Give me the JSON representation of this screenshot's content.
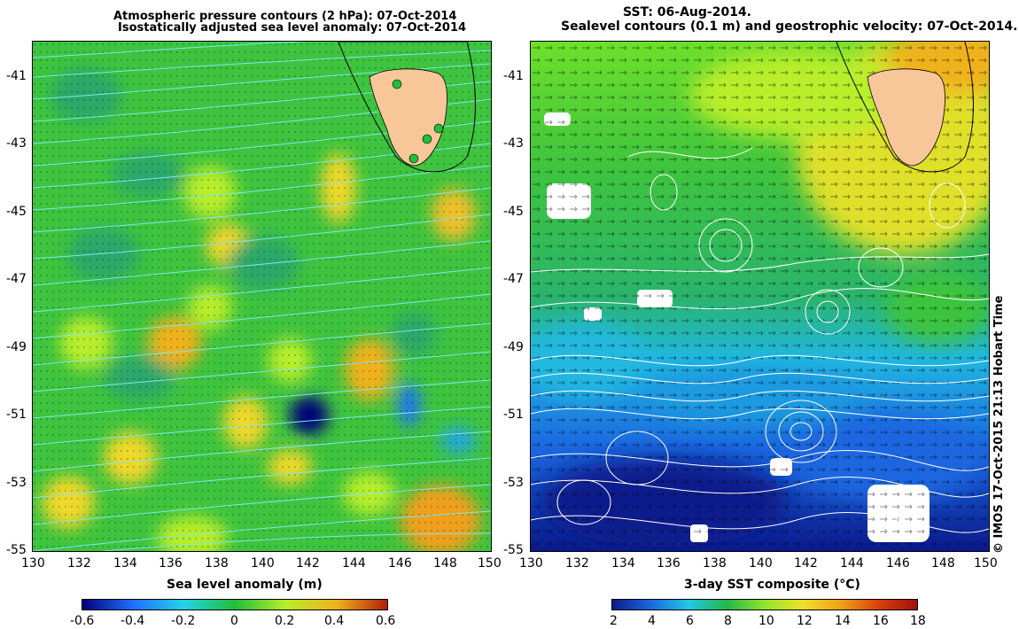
{
  "left_panel": {
    "title_line1": "Atmospheric pressure contours (2 hPa): 07-Oct-2014",
    "title_line2": "Isostatically adjusted sea level anomaly: 07-Oct-2014",
    "y_ticks": [
      "-41",
      "-43",
      "-45",
      "-47",
      "-49",
      "-51",
      "-53",
      "-55"
    ],
    "x_ticks": [
      "130",
      "132",
      "134",
      "136",
      "138",
      "140",
      "142",
      "144",
      "146",
      "148",
      "150"
    ],
    "colorbar_label": "Sea level anomaly (m)",
    "colorbar_ticks": [
      "-0.6",
      "-0.4",
      "-0.2",
      "0",
      "0.2",
      "0.4",
      "0.6"
    ],
    "colorbar_colors": [
      "#00007a",
      "#1f6fff",
      "#23d4e6",
      "#1fbf3a",
      "#b8ee2a",
      "#f0b21c",
      "#b01f06"
    ]
  },
  "right_panel": {
    "title_line1": "SST: 06-Aug-2014.",
    "title_line2": "Sealevel contours (0.1 m) and geostrophic velocity: 07-Oct-2014.",
    "y_ticks": [
      "-41",
      "-43",
      "-45",
      "-47",
      "-49",
      "-51",
      "-53",
      "-55"
    ],
    "x_ticks": [
      "130",
      "132",
      "134",
      "136",
      "138",
      "140",
      "142",
      "144",
      "146",
      "148",
      "150"
    ],
    "colorbar_label": "3-day SST composite (°C)",
    "colorbar_ticks": [
      "2",
      "4",
      "6",
      "8",
      "10",
      "12",
      "14",
      "16",
      "18"
    ],
    "colorbar_colors": [
      "#0a1a8c",
      "#1a66e0",
      "#20c8e8",
      "#22b84a",
      "#8ee62a",
      "#f0e02a",
      "#f0a018",
      "#d8400a",
      "#a01008"
    ]
  },
  "copyright": "© IMOS 17-Oct-2015 21:13 Hobart Time",
  "colors": {
    "land": "#f7c79a",
    "ocean_green": "#3ec43e",
    "contour_cyan": "#7ee8ee"
  }
}
